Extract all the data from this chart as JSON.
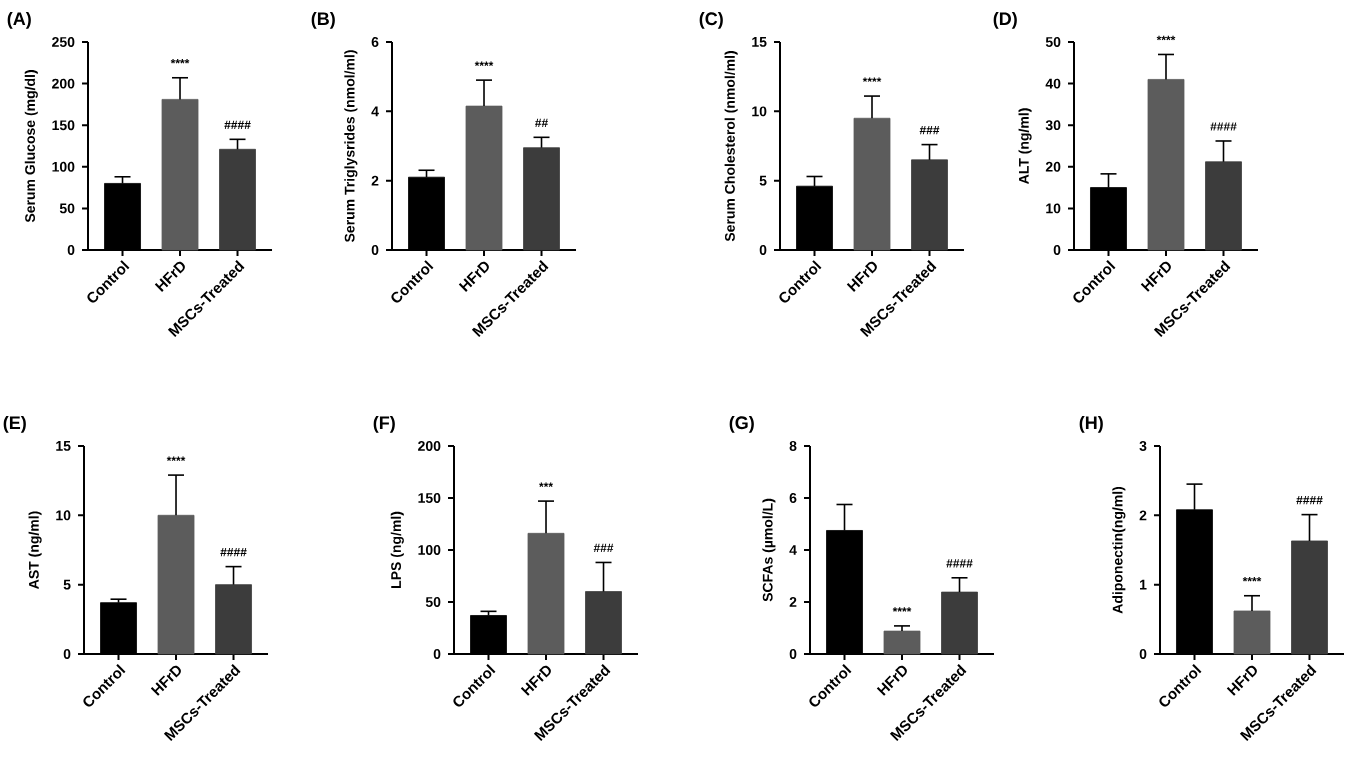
{
  "chart_data": [
    {
      "type": "bar",
      "title": "(A)",
      "ylabel": "Serum Glucose (mg/dl)",
      "categories": [
        "Control",
        "HFrD",
        "MSCs-Treated"
      ],
      "values": [
        80,
        181,
        121
      ],
      "colors": [
        "#000000",
        "#5c5c5c",
        "#3c3c3c"
      ],
      "errors": [
        [
          80,
          88
        ],
        [
          181,
          207
        ],
        [
          121,
          133
        ]
      ],
      "ylim": [
        0,
        250
      ],
      "yticks": [
        0,
        50,
        100,
        150,
        200,
        250
      ],
      "annotations": [
        "****",
        "####"
      ]
    },
    {
      "type": "bar",
      "title": "(B)",
      "ylabel": "Serum Triglysrides (nmol/ml)",
      "categories": [
        "Control",
        "HFrD",
        "MSCs-Treated"
      ],
      "values": [
        2.1,
        4.15,
        2.95
      ],
      "colors": [
        "#000000",
        "#5c5c5c",
        "#3c3c3c"
      ],
      "errors": [
        [
          2.1,
          2.3
        ],
        [
          4.15,
          4.9
        ],
        [
          2.95,
          3.25
        ]
      ],
      "ylim": [
        0,
        6
      ],
      "yticks": [
        0,
        2,
        4,
        6
      ],
      "annotations": [
        "****",
        "##"
      ]
    },
    {
      "type": "bar",
      "title": "(C)",
      "ylabel": "Serum Cholesterol (nmol/ml)",
      "categories": [
        "Control",
        "HFrD",
        "MSCs-Treated"
      ],
      "values": [
        4.6,
        9.5,
        6.5
      ],
      "colors": [
        "#000000",
        "#5c5c5c",
        "#3c3c3c"
      ],
      "errors": [
        [
          4.6,
          5.3
        ],
        [
          9.5,
          11.1
        ],
        [
          6.5,
          7.6
        ]
      ],
      "ylim": [
        0,
        15
      ],
      "yticks": [
        0,
        5,
        10,
        15
      ],
      "annotations": [
        "****",
        "###"
      ]
    },
    {
      "type": "bar",
      "title": "(D)",
      "ylabel": "ALT (ng/ml)",
      "categories": [
        "Control",
        "HFrD",
        "MSCs-Treated"
      ],
      "values": [
        15,
        41,
        21.2
      ],
      "colors": [
        "#000000",
        "#5c5c5c",
        "#3c3c3c"
      ],
      "errors": [
        [
          15,
          18.3
        ],
        [
          41,
          47
        ],
        [
          21.2,
          26.2
        ]
      ],
      "ylim": [
        0,
        50
      ],
      "yticks": [
        0,
        10,
        20,
        30,
        40,
        50
      ],
      "annotations": [
        "****",
        "####"
      ]
    },
    {
      "type": "bar",
      "title": "(E)",
      "ylabel": "AST (ng/ml)",
      "categories": [
        "Control",
        "HFrD",
        "MSCs-Treated"
      ],
      "values": [
        3.7,
        10,
        5
      ],
      "colors": [
        "#000000",
        "#5c5c5c",
        "#3c3c3c"
      ],
      "errors": [
        [
          3.7,
          3.95
        ],
        [
          10,
          12.9
        ],
        [
          5,
          6.3
        ]
      ],
      "ylim": [
        0,
        15
      ],
      "yticks": [
        0,
        5,
        10,
        15
      ],
      "annotations": [
        "****",
        "####"
      ]
    },
    {
      "type": "bar",
      "title": "(F)",
      "ylabel": "LPS (ng/ml)",
      "categories": [
        "Control",
        "HFrD",
        "MSCs-Treated"
      ],
      "values": [
        37,
        116,
        60
      ],
      "colors": [
        "#000000",
        "#5c5c5c",
        "#3c3c3c"
      ],
      "errors": [
        [
          37,
          41
        ],
        [
          116,
          147
        ],
        [
          60,
          88
        ]
      ],
      "ylim": [
        0,
        200
      ],
      "yticks": [
        0,
        50,
        100,
        150,
        200
      ],
      "annotations": [
        "***",
        "###"
      ]
    },
    {
      "type": "bar",
      "title": "(G)",
      "ylabel": "SCFAs (µmol/L)",
      "categories": [
        "Control",
        "HFrD",
        "MSCs-Treated"
      ],
      "values": [
        4.75,
        0.88,
        2.38
      ],
      "colors": [
        "#000000",
        "#5c5c5c",
        "#3c3c3c"
      ],
      "errors": [
        [
          4.75,
          5.75
        ],
        [
          0.88,
          1.08
        ],
        [
          2.38,
          2.93
        ]
      ],
      "ylim": [
        0,
        8
      ],
      "yticks": [
        0,
        2,
        4,
        6,
        8
      ],
      "annotations": [
        "****",
        "####"
      ]
    },
    {
      "type": "bar",
      "title": "(H)",
      "ylabel": "Adiponectin(ng/ml)",
      "categories": [
        "Control",
        "HFrD",
        "MSCs-Treated"
      ],
      "values": [
        2.08,
        0.62,
        1.63
      ],
      "colors": [
        "#000000",
        "#5c5c5c",
        "#3c3c3c"
      ],
      "errors": [
        [
          2.08,
          2.45
        ],
        [
          0.62,
          0.84
        ],
        [
          1.63,
          2.01
        ]
      ],
      "ylim": [
        0,
        3
      ],
      "yticks": [
        0,
        1,
        2,
        3
      ],
      "annotations": [
        "****",
        "####"
      ]
    }
  ]
}
